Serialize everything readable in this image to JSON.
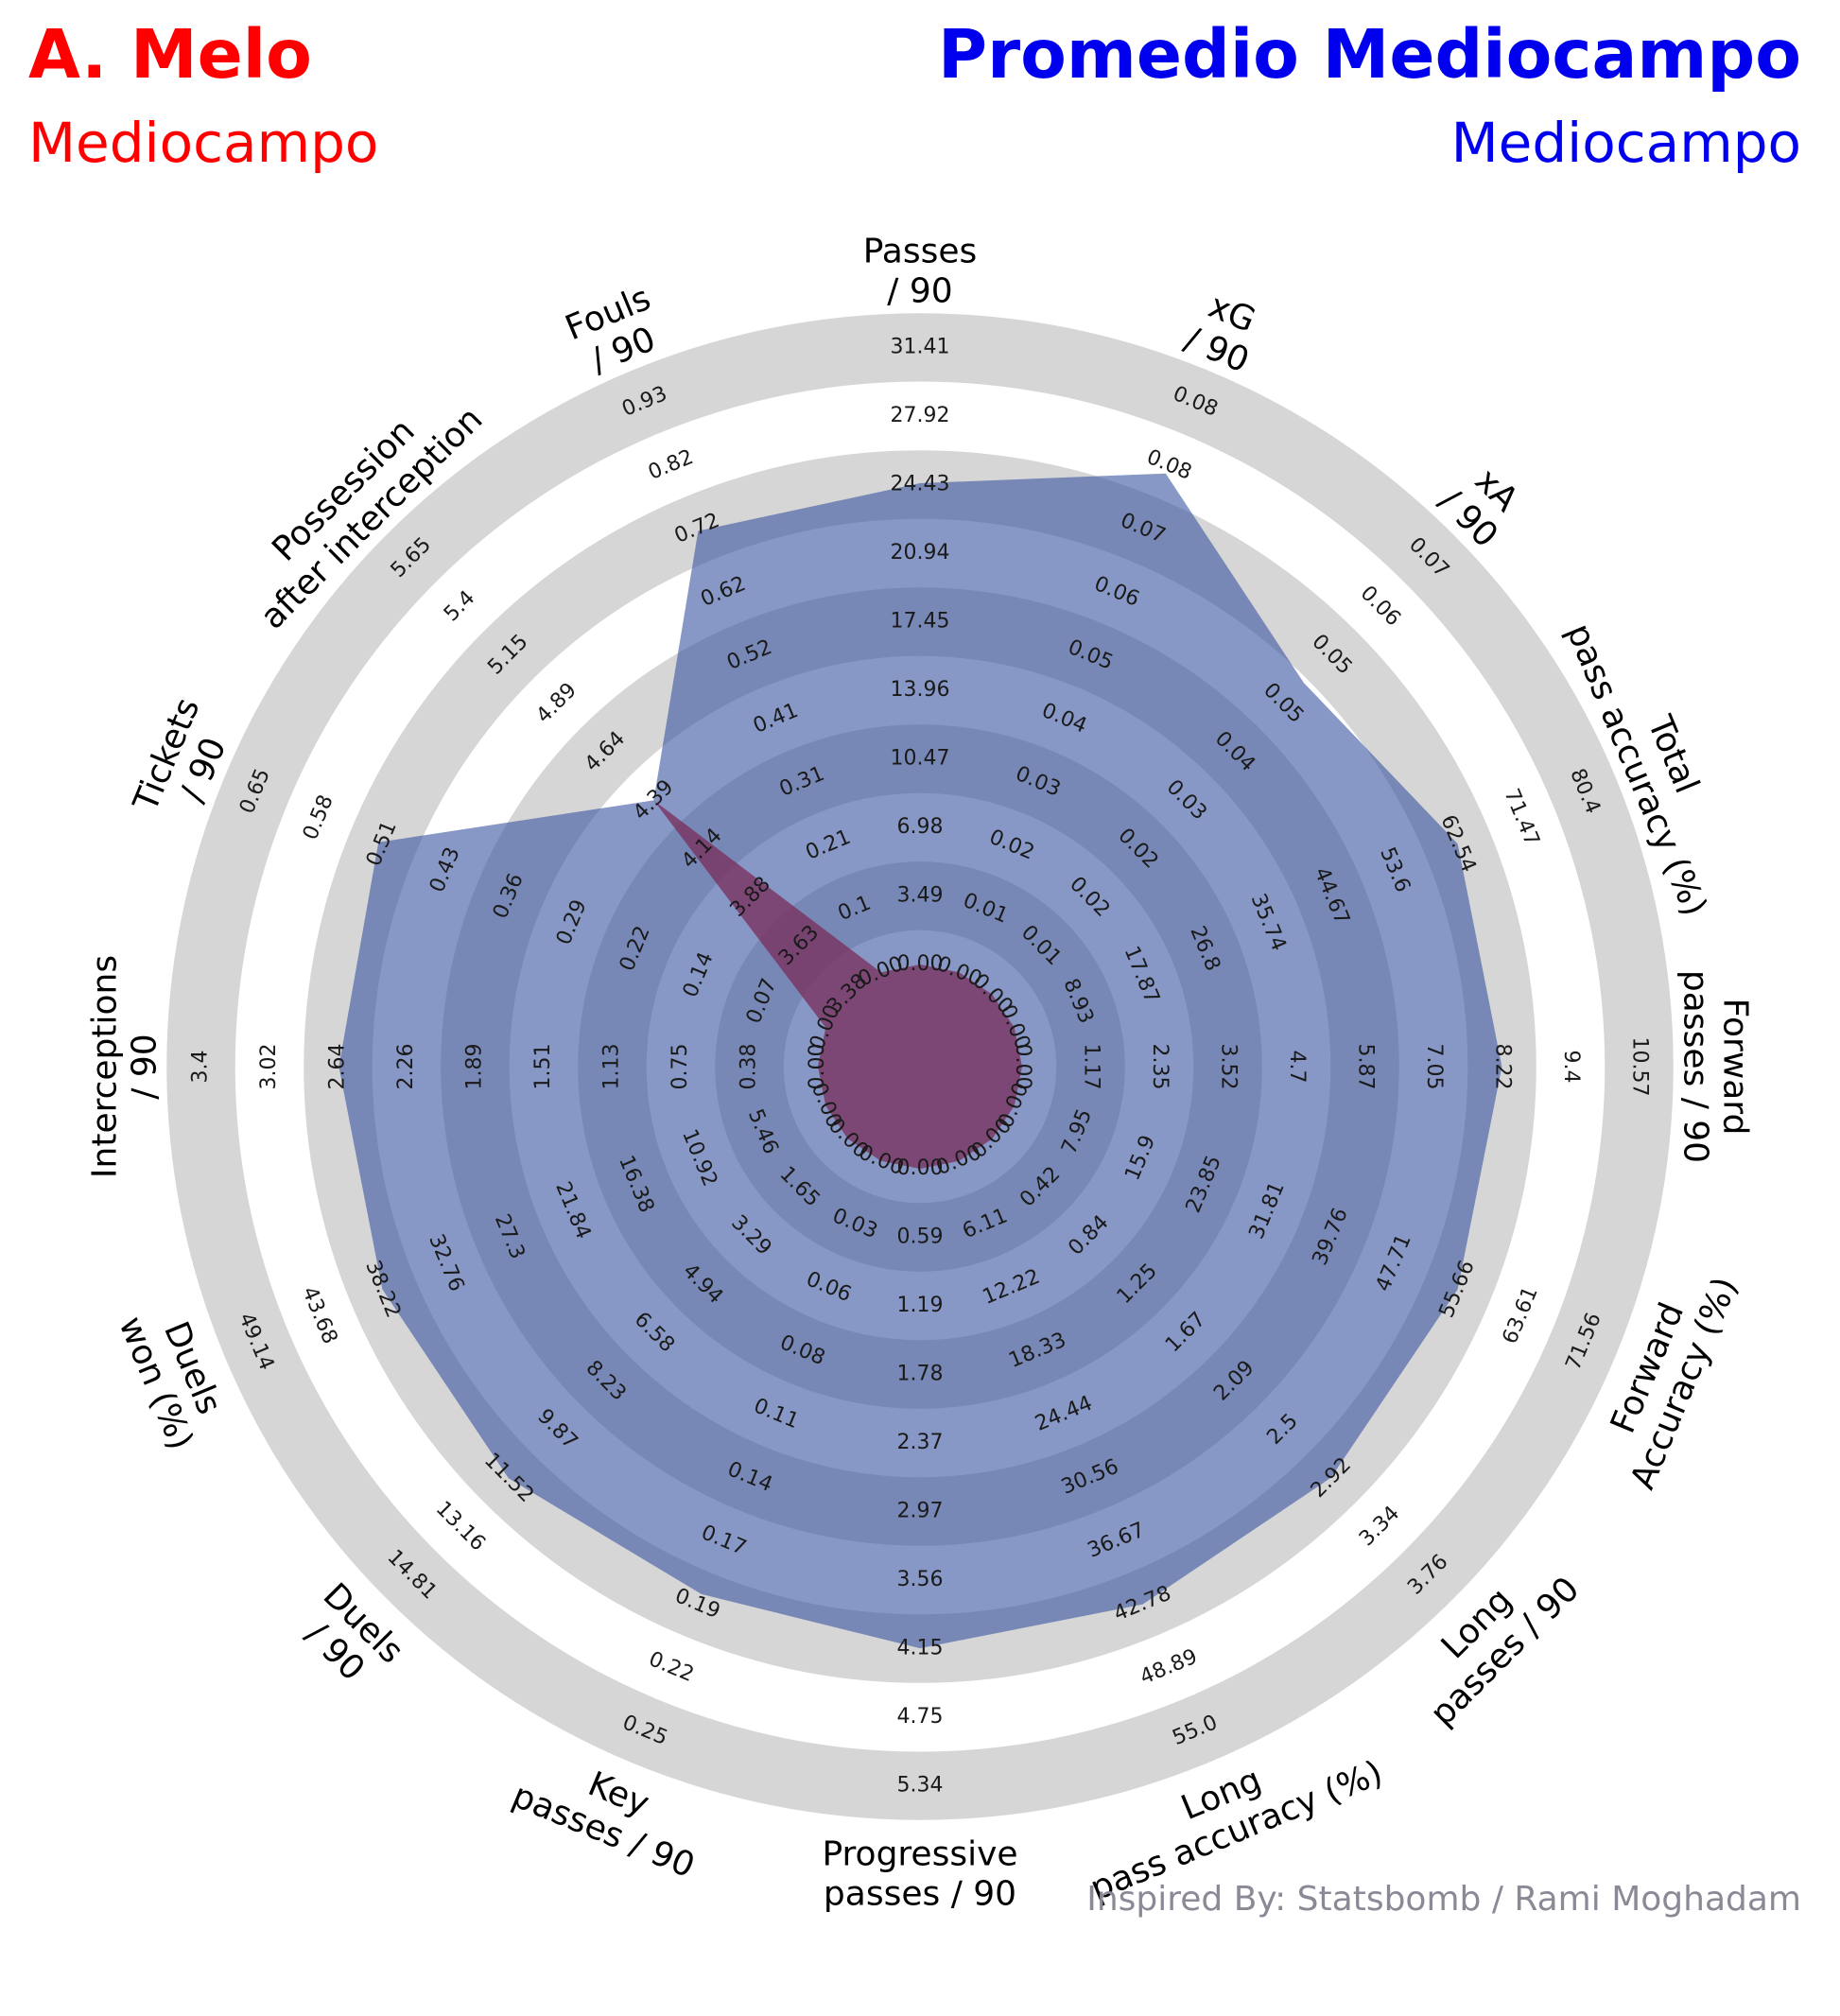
{
  "header": {
    "player_name": "A. Melo",
    "player_position": "Mediocampo",
    "compare_name": "Promedio Mediocampo",
    "compare_position": "Mediocampo",
    "player_color": "#ff0000",
    "compare_color": "#0000ee"
  },
  "credit": "Inspired By: Statsbomb / Rami Moghadam",
  "chart_data": {
    "type": "radar",
    "title": "",
    "axes": [
      {
        "label": "Passes / 90",
        "ticks": [
          "0.00",
          "3.49",
          "6.98",
          "10.47",
          "13.96",
          "17.45",
          "20.94",
          "24.43",
          "27.92",
          "31.41"
        ]
      },
      {
        "label": "xG / 90",
        "ticks": [
          "0.00",
          "0.01",
          "0.02",
          "0.03",
          "0.04",
          "0.05",
          "0.06",
          "0.07",
          "0.08",
          "0.08"
        ]
      },
      {
        "label": "xA / 90",
        "ticks": [
          "0.00",
          "0.01",
          "0.02",
          "0.02",
          "0.03",
          "0.04",
          "0.05",
          "0.05",
          "0.06",
          "0.07"
        ]
      },
      {
        "label": "Total pass accuracy (%)",
        "ticks": [
          "0.00",
          "8.93",
          "17.87",
          "26.8",
          "35.74",
          "44.67",
          "53.6",
          "62.54",
          "71.47",
          "80.4"
        ]
      },
      {
        "label": "Forward passes / 90",
        "ticks": [
          "0.00",
          "1.17",
          "2.35",
          "3.52",
          "4.7",
          "5.87",
          "7.05",
          "8.22",
          "9.4",
          "10.57"
        ]
      },
      {
        "label": "Forward Accuracy (%)",
        "ticks": [
          "0.00",
          "7.95",
          "15.9",
          "23.85",
          "31.81",
          "39.76",
          "47.71",
          "55.66",
          "63.61",
          "71.56"
        ]
      },
      {
        "label": "Long passes / 90",
        "ticks": [
          "0.00",
          "0.42",
          "0.84",
          "1.25",
          "1.67",
          "2.09",
          "2.5",
          "2.92",
          "3.34",
          "3.76"
        ]
      },
      {
        "label": "Long pass accuracy (%)",
        "ticks": [
          "0.00",
          "6.11",
          "12.22",
          "18.33",
          "24.44",
          "30.56",
          "36.67",
          "42.78",
          "48.89",
          "55.0"
        ]
      },
      {
        "label": "Progressive passes / 90",
        "ticks": [
          "0.00",
          "0.59",
          "1.19",
          "1.78",
          "2.37",
          "2.97",
          "3.56",
          "4.15",
          "4.75",
          "5.34"
        ]
      },
      {
        "label": "Key passes / 90",
        "ticks": [
          "0.00",
          "0.03",
          "0.06",
          "0.08",
          "0.11",
          "0.14",
          "0.17",
          "0.19",
          "0.22",
          "0.25"
        ]
      },
      {
        "label": "Duels / 90",
        "ticks": [
          "0.00",
          "1.65",
          "3.29",
          "4.94",
          "6.58",
          "8.23",
          "9.87",
          "11.52",
          "13.16",
          "14.81"
        ]
      },
      {
        "label": "Duels won (%)",
        "ticks": [
          "0.00",
          "5.46",
          "10.92",
          "16.38",
          "21.84",
          "27.3",
          "32.76",
          "38.22",
          "43.68",
          "49.14"
        ]
      },
      {
        "label": "Interceptions / 90",
        "ticks": [
          "0.00",
          "0.38",
          "0.75",
          "1.13",
          "1.51",
          "1.89",
          "2.26",
          "2.64",
          "3.02",
          "3.4"
        ]
      },
      {
        "label": "Tickets / 90",
        "ticks": [
          "0.00",
          "0.07",
          "0.14",
          "0.22",
          "0.29",
          "0.36",
          "0.43",
          "0.51",
          "0.58",
          "0.65"
        ]
      },
      {
        "label": "Possession after interception",
        "ticks": [
          "3.38",
          "3.63",
          "3.88",
          "4.14",
          "4.39",
          "4.64",
          "4.89",
          "5.15",
          "5.4",
          "5.65"
        ]
      },
      {
        "label": "Fouls / 90",
        "ticks": [
          "0.00",
          "0.1",
          "0.21",
          "0.31",
          "0.41",
          "0.52",
          "0.62",
          "0.72",
          "0.82",
          "0.93"
        ]
      }
    ],
    "series": [
      {
        "name": "A. Melo",
        "color": "#7a2c5a",
        "values": [
          0,
          0,
          0,
          0,
          0,
          0,
          0,
          0,
          0,
          0,
          0,
          0,
          0,
          0,
          4.39,
          0
        ]
      },
      {
        "name": "Promedio Mediocampo",
        "color": "#3f58a3",
        "values": [
          24.5,
          0.07,
          0.05,
          62.54,
          8.22,
          55.66,
          2.92,
          42.78,
          4.15,
          0.19,
          11.52,
          38.22,
          2.64,
          0.51,
          4.39,
          0.72
        ]
      }
    ]
  }
}
